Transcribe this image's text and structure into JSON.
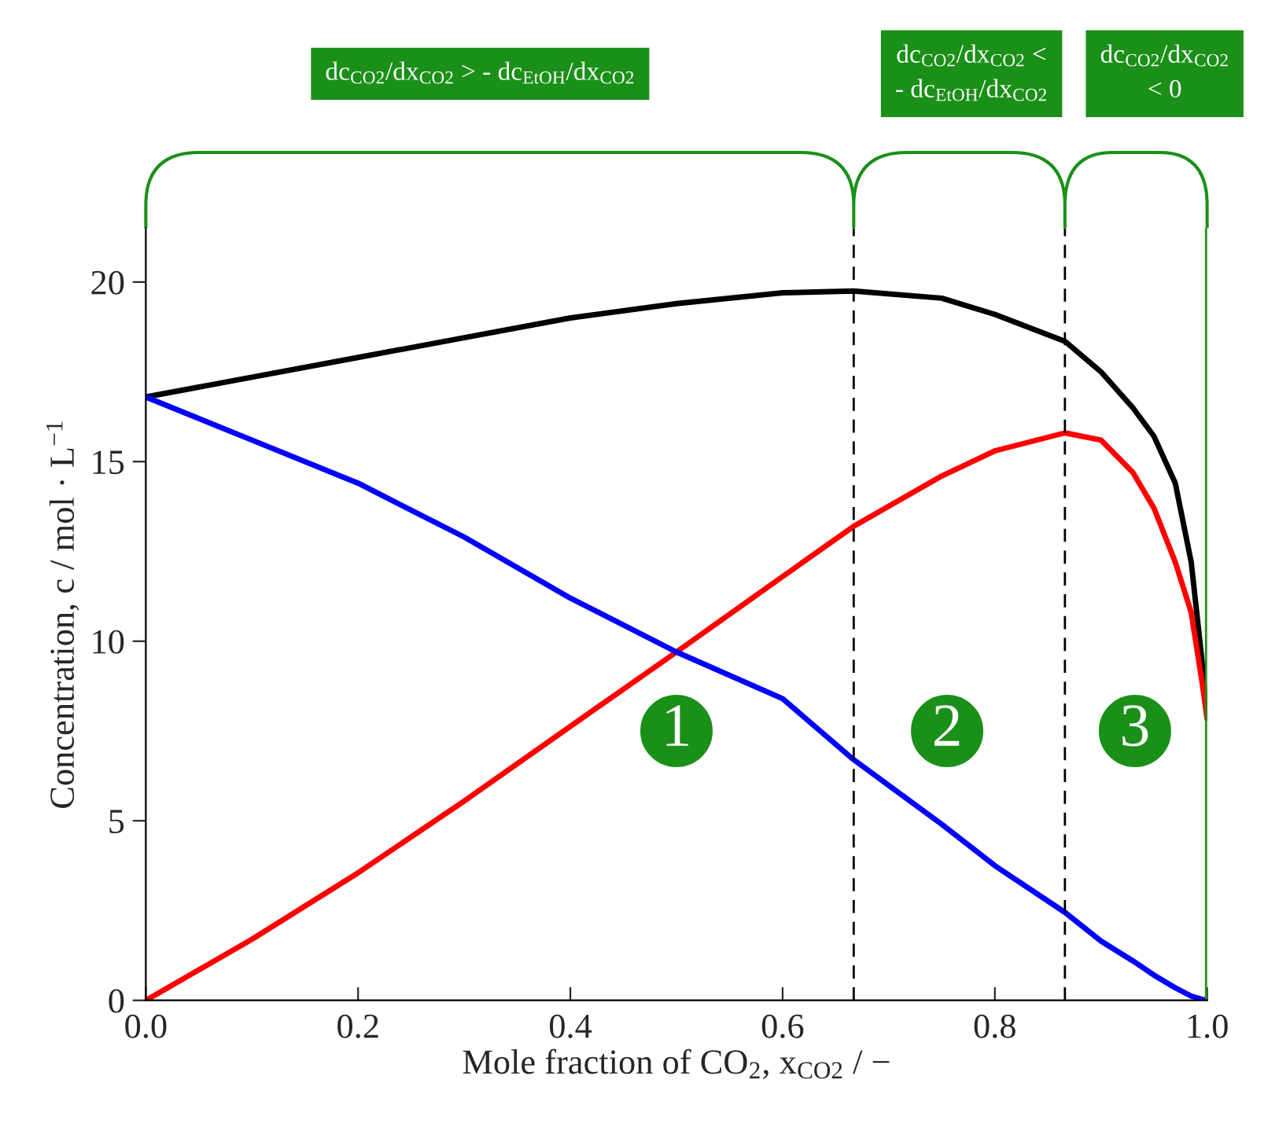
{
  "chart_data": {
    "type": "line",
    "xlabel": "Mole fraction of CO$_{2}$, x$_{CO2}$ / −",
    "ylabel": "Concentration, c / mol · L$^{−1}$",
    "x": [
      0,
      0.1,
      0.2,
      0.3,
      0.4,
      0.5,
      0.6,
      0.667,
      0.75,
      0.8,
      0.866,
      0.9,
      0.93,
      0.95,
      0.97,
      0.985,
      0.995,
      1.0
    ],
    "series": [
      {
        "color": "#000000",
        "values": [
          16.8,
          17.35,
          17.9,
          18.45,
          19.0,
          19.4,
          19.7,
          19.75,
          19.55,
          19.1,
          18.35,
          17.5,
          16.5,
          15.7,
          14.4,
          12.2,
          9.5,
          7.85
        ]
      },
      {
        "color": "#ff0000",
        "values": [
          0,
          1.7,
          3.55,
          5.55,
          7.63,
          9.7,
          11.8,
          13.2,
          14.6,
          15.3,
          15.8,
          15.6,
          14.7,
          13.7,
          12.2,
          10.8,
          8.9,
          7.85
        ]
      },
      {
        "color": "#0000ff",
        "values": [
          16.8,
          15.6,
          14.4,
          12.9,
          11.2,
          9.7,
          8.4,
          6.7,
          4.9,
          3.75,
          2.45,
          1.65,
          1.1,
          0.7,
          0.35,
          0.12,
          0.03,
          0
        ]
      }
    ],
    "xlim": [
      0,
      1
    ],
    "ylim": [
      0,
      21.5
    ],
    "xticks": [
      {
        "value": 0,
        "label": "0.0"
      },
      {
        "value": 0.2,
        "label": "0.2"
      },
      {
        "value": 0.4,
        "label": "0.4"
      },
      {
        "value": 0.6,
        "label": "0.6"
      },
      {
        "value": 0.8,
        "label": "0.8"
      },
      {
        "value": 1,
        "label": "1.0"
      }
    ],
    "yticks": [
      0,
      5,
      10,
      15,
      20
    ],
    "line_style": "solid",
    "marker": "none",
    "grid": false,
    "legend": false,
    "ref_lines": [
      {
        "axis": "x",
        "value": 0.667,
        "line_style": "dashed",
        "color": "#000000"
      },
      {
        "axis": "x",
        "value": 0.866,
        "line_style": "dashed",
        "color": "#000000"
      },
      {
        "axis": "x",
        "value": 1,
        "line_style": "solid",
        "color": "#1a9018"
      }
    ],
    "annotations": [
      "dc$_{CO2}$/dx$_{CO2}$ > - dc$_{EtOH}$/dx$_{CO2}$",
      "dc$_{CO2}$/dx$_{CO2}$ <\n- dc$_{EtOH}$/dx$_{CO2}$",
      "dc$_{CO2}$/dx$_{CO2}$\n< 0",
      "1",
      "2",
      "3"
    ]
  }
}
